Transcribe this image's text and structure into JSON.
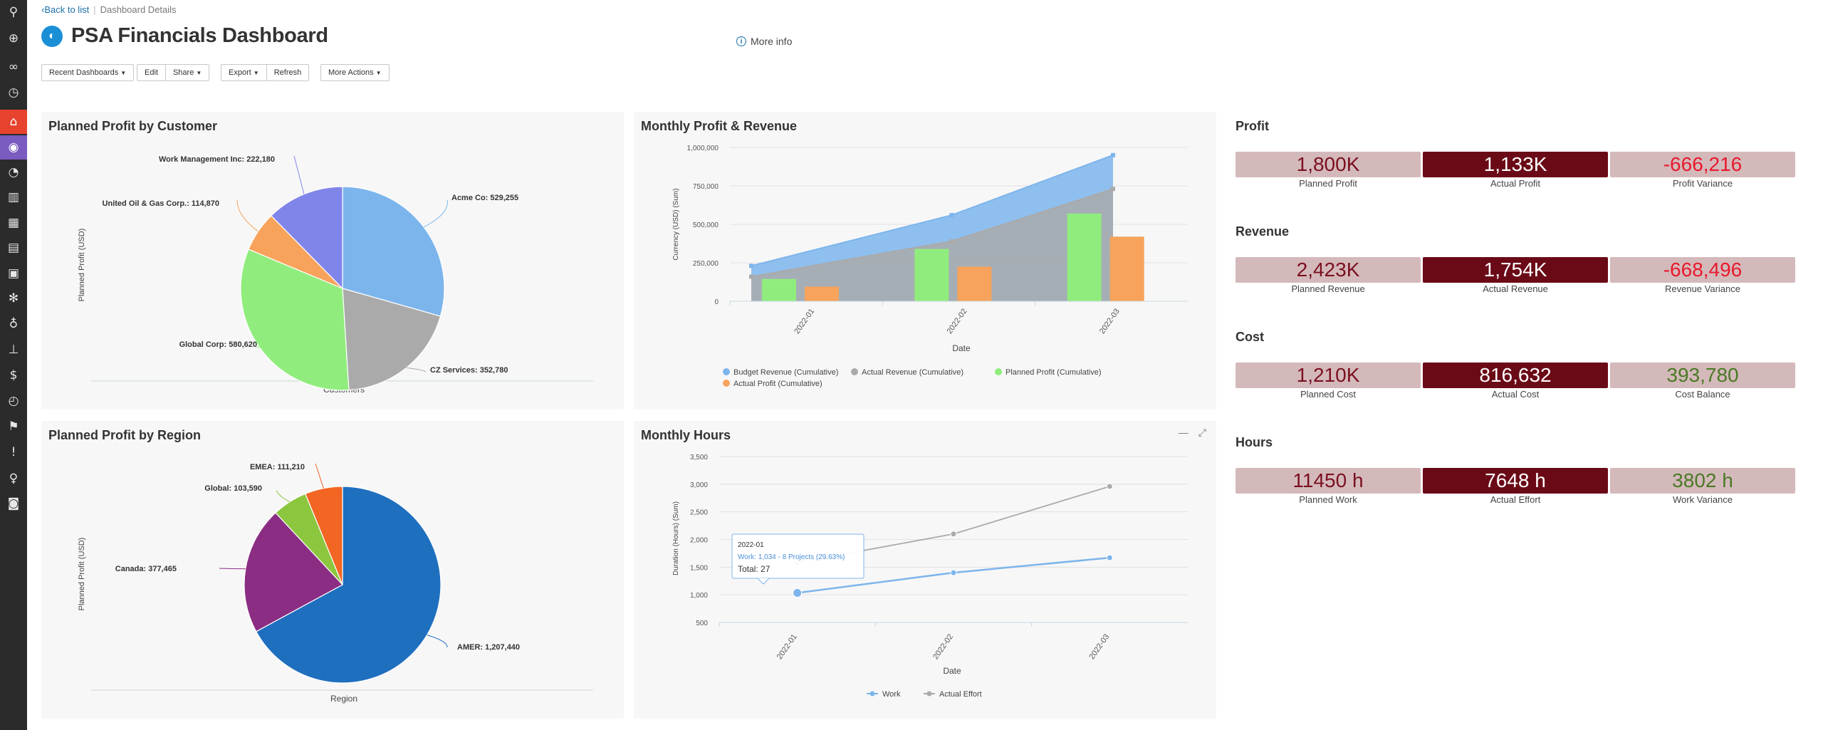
{
  "breadcrumb": {
    "back": "Back to list",
    "current": "Dashboard Details"
  },
  "header": {
    "title": "PSA Financials Dashboard",
    "more_info": "More info"
  },
  "toolbar": {
    "recent": "Recent Dashboards",
    "edit": "Edit",
    "share": "Share",
    "export": "Export",
    "refresh": "Refresh",
    "more_actions": "More Actions"
  },
  "panels": {
    "customer": {
      "title": "Planned Profit by Customer"
    },
    "monthly": {
      "title": "Monthly Profit & Revenue"
    },
    "region": {
      "title": "Planned Profit by Region"
    },
    "hours": {
      "title": "Monthly Hours"
    }
  },
  "chart_data": [
    {
      "id": "customer",
      "type": "pie",
      "title": "Planned Profit by Customer",
      "xlabel": "Customers",
      "ylabel": "Planned Profit (USD)",
      "slices": [
        {
          "label": "Acme Co: 529,255",
          "value": 529255,
          "color": "#7cb5ec"
        },
        {
          "label": "CZ Services: 352,780",
          "value": 352780,
          "color": "#aaaaaa"
        },
        {
          "label": "Global Corp: 580,620",
          "value": 580620,
          "color": "#90ed7d"
        },
        {
          "label": "United Oil & Gas Corp.: 114,870",
          "value": 114870,
          "color": "#f7a35c"
        },
        {
          "label": "Work Management Inc: 222,180",
          "value": 222180,
          "color": "#8085e9"
        }
      ]
    },
    {
      "id": "monthly",
      "type": "bar",
      "title": "Monthly Profit & Revenue",
      "xlabel": "Date",
      "ylabel": "Currency (USD) (Sum)",
      "categories": [
        "2022-01",
        "2022-02",
        "2022-03"
      ],
      "yticks": [
        "0",
        "250,000",
        "500,000",
        "750,000",
        "1,000,000"
      ],
      "ylim": [
        0,
        1000000
      ],
      "series": [
        {
          "name": "Budget Revenue (Cumulative)",
          "kind": "area",
          "color": "#7cb5ec",
          "values": [
            230000,
            560000,
            950000
          ]
        },
        {
          "name": "Actual Revenue (Cumulative)",
          "kind": "area",
          "color": "#aaaaaa",
          "values": [
            160000,
            390000,
            730000
          ]
        },
        {
          "name": "Planned Profit (Cumulative)",
          "kind": "bar",
          "color": "#90ed7d",
          "values": [
            145000,
            340000,
            570000
          ]
        },
        {
          "name": "Actual Profit (Cumulative)",
          "kind": "bar",
          "color": "#f7a35c",
          "values": [
            95000,
            225000,
            420000
          ]
        }
      ]
    },
    {
      "id": "region",
      "type": "pie",
      "title": "Planned Profit by Region",
      "xlabel": "Region",
      "ylabel": "Planned Profit (USD)",
      "slices": [
        {
          "label": "AMER: 1,207,440",
          "value": 1207440,
          "color": "#1f6fbf"
        },
        {
          "label": "Canada: 377,465",
          "value": 377465,
          "color": "#8b2d83"
        },
        {
          "label": "Global: 103,590",
          "value": 103590,
          "color": "#8cc63f"
        },
        {
          "label": "EMEA: 111,210",
          "value": 111210,
          "color": "#f26522"
        }
      ]
    },
    {
      "id": "hours",
      "type": "line",
      "title": "Monthly Hours",
      "xlabel": "Date",
      "ylabel": "Duration (Hours) (Sum)",
      "categories": [
        "2022-01",
        "2022-02",
        "2022-03"
      ],
      "yticks": [
        "500",
        "1,000",
        "1,500",
        "2,000",
        "2,500",
        "3,000",
        "3,500"
      ],
      "ylim": [
        500,
        3500
      ],
      "series": [
        {
          "name": "Work",
          "color": "#7cb5ec",
          "values": [
            1034,
            1400,
            1670
          ]
        },
        {
          "name": "Actual Effort",
          "color": "#aaaaaa",
          "values": [
            1580,
            2100,
            2960
          ]
        }
      ],
      "tooltip": {
        "line1": "2022-01",
        "line2": "Work: 1,034 - 8 Projects (29.63%)",
        "line3": "Total: 27"
      }
    }
  ],
  "kpis": [
    {
      "title": "Profit",
      "tiles": [
        {
          "value": "1,800K",
          "label": "Planned Profit",
          "kind": "planned"
        },
        {
          "value": "1,133K",
          "label": "Actual Profit",
          "kind": "actual"
        },
        {
          "value": "-666,216",
          "label": "Profit Variance",
          "kind": "var neg"
        }
      ]
    },
    {
      "title": "Revenue",
      "tiles": [
        {
          "value": "2,423K",
          "label": "Planned Revenue",
          "kind": "planned"
        },
        {
          "value": "1,754K",
          "label": "Actual Revenue",
          "kind": "actual"
        },
        {
          "value": "-668,496",
          "label": "Revenue Variance",
          "kind": "var neg"
        }
      ]
    },
    {
      "title": "Cost",
      "tiles": [
        {
          "value": "1,210K",
          "label": "Planned Cost",
          "kind": "planned"
        },
        {
          "value": "816,632",
          "label": "Actual Cost",
          "kind": "actual"
        },
        {
          "value": "393,780",
          "label": "Cost Balance",
          "kind": "var pos"
        }
      ]
    },
    {
      "title": "Hours",
      "tiles": [
        {
          "value": "11450 h",
          "label": "Planned Work",
          "kind": "planned"
        },
        {
          "value": "7648 h",
          "label": "Actual Effort",
          "kind": "actual"
        },
        {
          "value": "3802 h",
          "label": "Work Variance",
          "kind": "var pos"
        }
      ]
    }
  ]
}
